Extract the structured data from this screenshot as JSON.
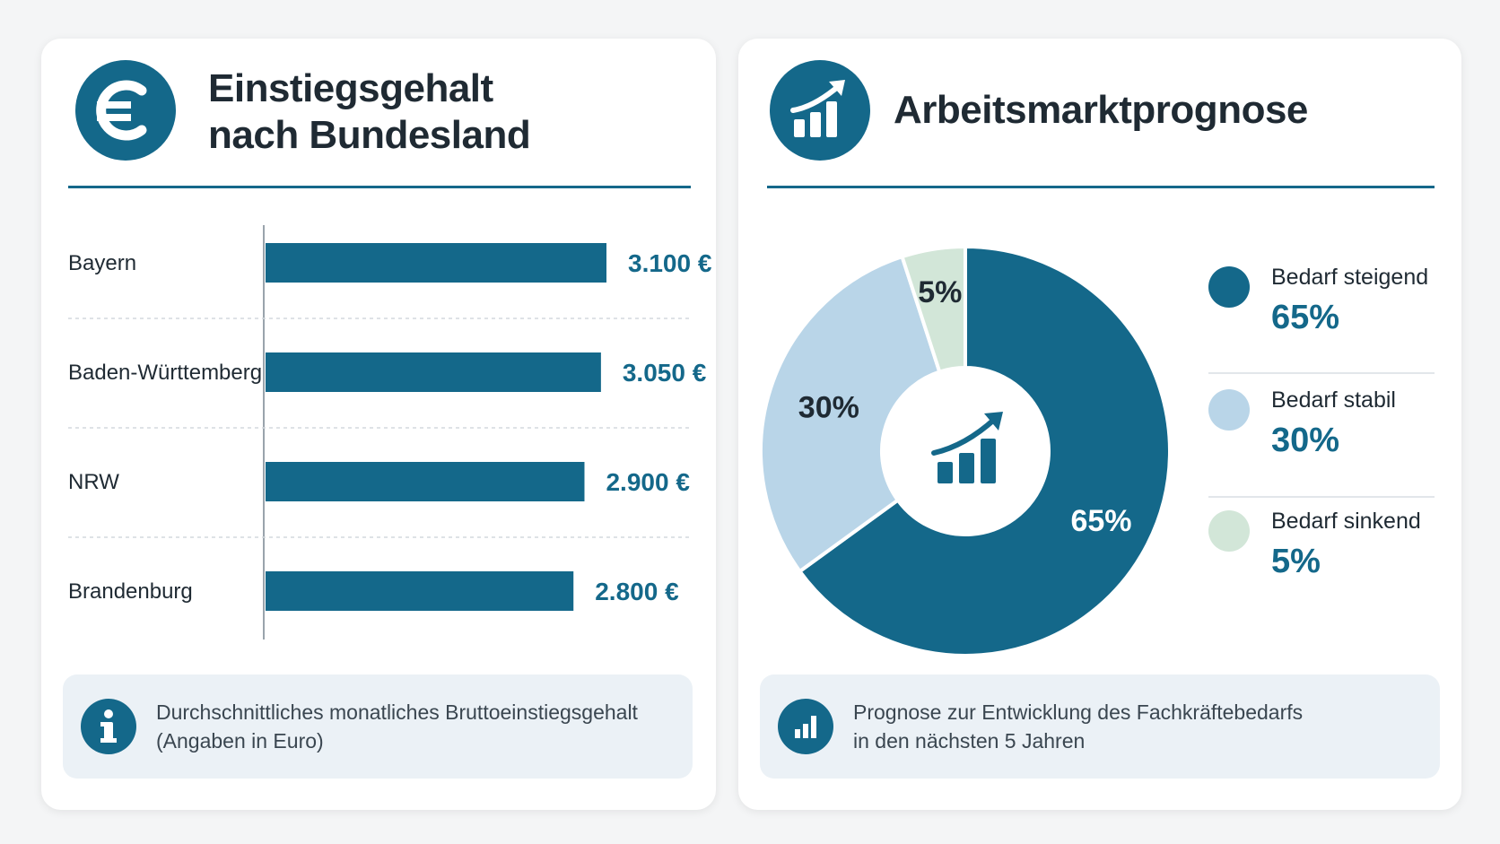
{
  "colors": {
    "primary": "#14688a",
    "stable": "#b9d5e8",
    "declining": "#d2e6d8",
    "text": "#1f2a33"
  },
  "salary_card": {
    "icon": "euro-icon",
    "title": "Einstiegsgehalt\nnach Bundesland",
    "note_icon": "info-icon",
    "note": "Durchschnittliches monatliches Bruttoeinstiegsgehalt\n(Angaben in Euro)"
  },
  "forecast_card": {
    "icon": "rising-bar-chart-icon",
    "title": "Arbeitsmarktprognose",
    "center_icon": "rising-bar-chart-icon",
    "note_icon": "bar-chart-icon",
    "note": "Prognose zur Entwicklung des Fachkräftebedarfs\nin den nächsten 5 Jahren",
    "legend": [
      {
        "name": "Bedarf steigend",
        "pct": "65%"
      },
      {
        "name": "Bedarf stabil",
        "pct": "30%"
      },
      {
        "name": "Bedarf sinkend",
        "pct": "5%"
      }
    ]
  },
  "chart_data": [
    {
      "type": "bar",
      "orientation": "horizontal",
      "title": "Einstiegsgehalt nach Bundesland",
      "categories": [
        "Bayern",
        "Baden-Württemberg",
        "NRW",
        "Brandenburg"
      ],
      "values": [
        3100,
        3050,
        2900,
        2800
      ],
      "value_labels": [
        "3.100 €",
        "3.050 €",
        "2.900 €",
        "2.800 €"
      ],
      "unit": "€",
      "grid": false,
      "color": "#14688a"
    },
    {
      "type": "pie",
      "style": "donut",
      "title": "Arbeitsmarktprognose",
      "categories": [
        "Bedarf steigend",
        "Bedarf stabil",
        "Bedarf sinkend"
      ],
      "values": [
        65,
        30,
        5
      ],
      "value_labels": [
        "65%",
        "30%",
        "5%"
      ],
      "colors": [
        "#14688a",
        "#b9d5e8",
        "#d2e6d8"
      ],
      "legend": "right"
    }
  ]
}
